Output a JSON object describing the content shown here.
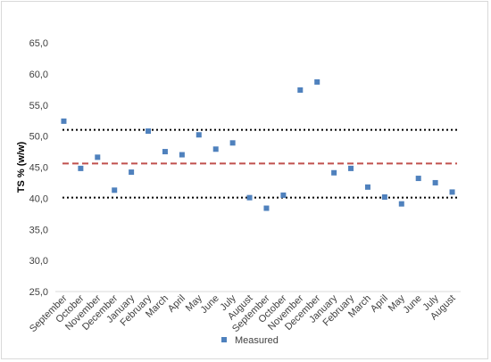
{
  "chart_data": {
    "type": "scatter",
    "ylabel": "TS % (w/w)",
    "xlabel": "",
    "ylim": [
      25,
      65
    ],
    "y_ticks": [
      "25,0",
      "30,0",
      "35,0",
      "40,0",
      "45,0",
      "50,0",
      "55,0",
      "60,0",
      "65,0"
    ],
    "categories": [
      "September",
      "October",
      "November",
      "December",
      "January",
      "February",
      "March",
      "April",
      "May",
      "June",
      "July",
      "August",
      "September",
      "October",
      "November",
      "December",
      "January",
      "February",
      "March",
      "April",
      "May",
      "June",
      "July",
      "August"
    ],
    "series": [
      {
        "name": "Measured",
        "color": "#4f81bd",
        "marker": "square",
        "values": [
          52.4,
          44.8,
          46.6,
          41.3,
          44.2,
          50.8,
          47.5,
          47.0,
          50.2,
          47.9,
          48.9,
          40.1,
          38.4,
          40.5,
          57.4,
          58.7,
          44.1,
          44.8,
          41.8,
          40.2,
          39.1,
          43.2,
          42.5,
          41.0
        ]
      }
    ],
    "reference_lines": [
      {
        "value": 51.0,
        "style": "dotted",
        "color": "#000000"
      },
      {
        "value": 45.6,
        "style": "dashed",
        "color": "#c0504d"
      },
      {
        "value": 40.1,
        "style": "dotted",
        "color": "#000000"
      }
    ],
    "grid": false,
    "legend": {
      "position": "bottom",
      "entries": [
        "Measured"
      ]
    }
  }
}
